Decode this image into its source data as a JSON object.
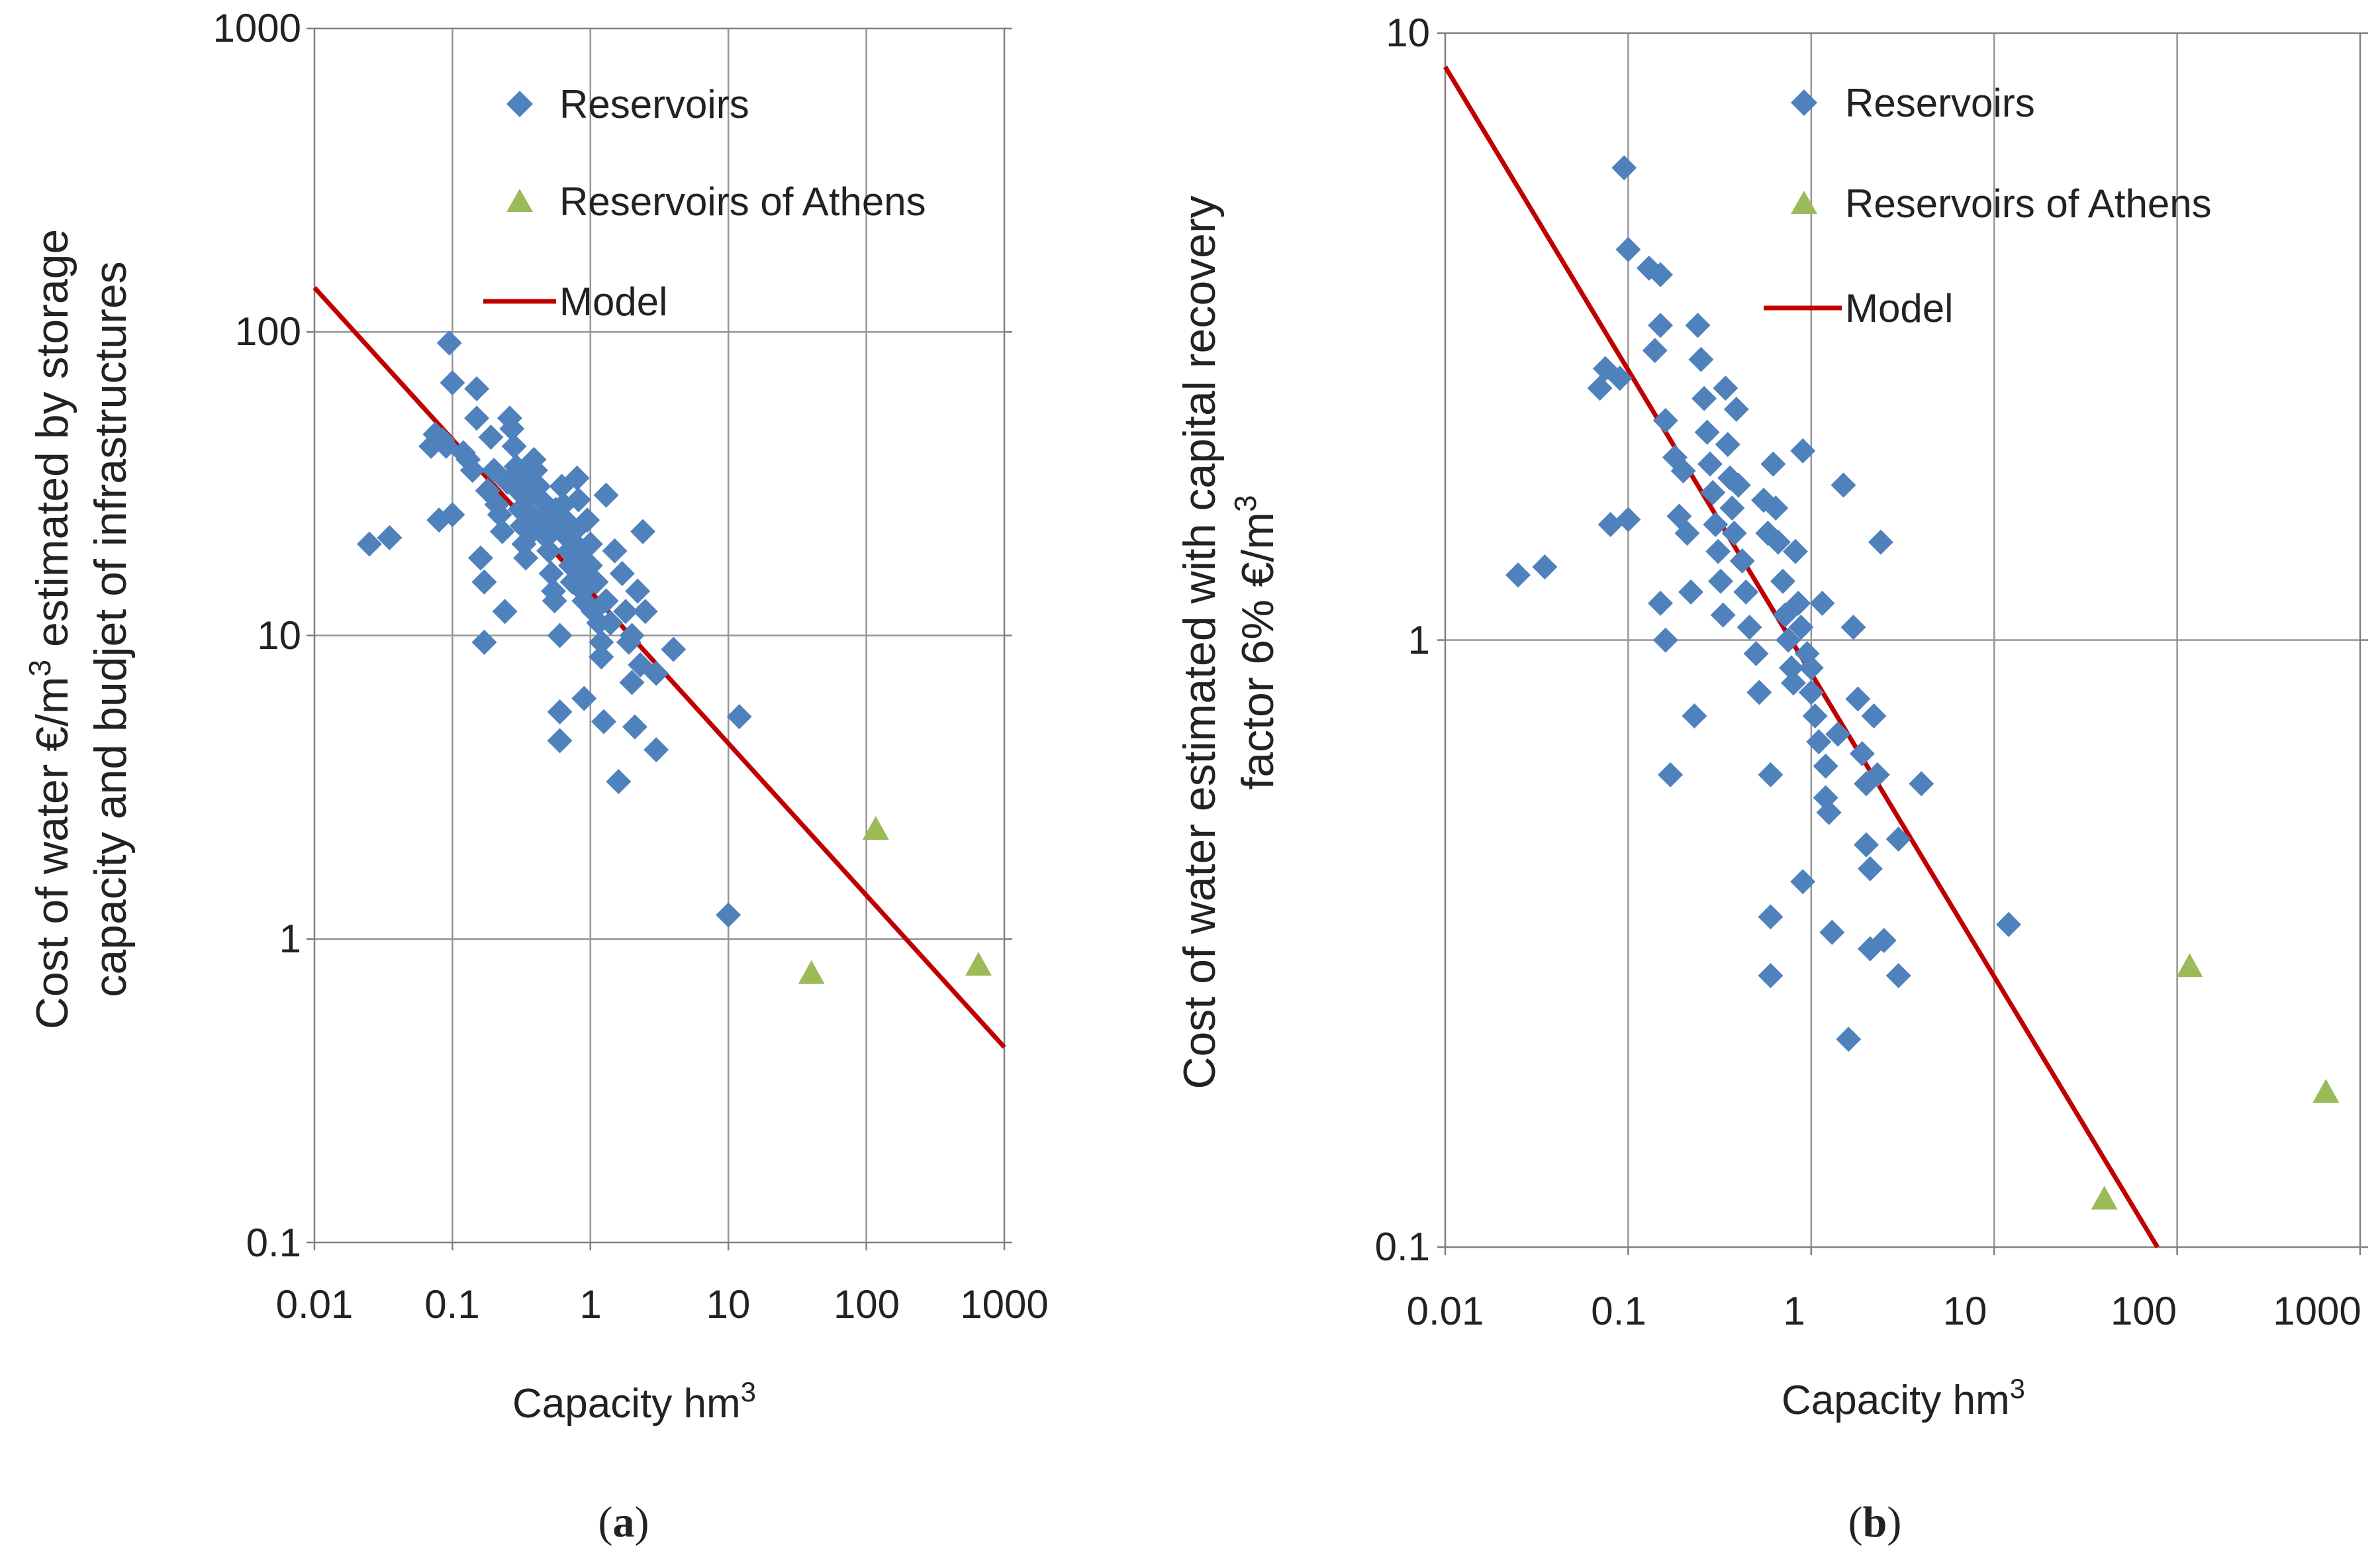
{
  "colors": {
    "reservoirs": "#4f81bd",
    "athens": "#9bbb59",
    "model": "#c00000",
    "grid": "#969696",
    "axis": "#808080"
  },
  "chart_data": [
    {
      "panel": "a",
      "caption": "(a)",
      "type": "scatter",
      "xscale": "log",
      "yscale": "log",
      "xlim": [
        0.01,
        1000
      ],
      "ylim": [
        0.1,
        1000
      ],
      "xticks": [
        "0.01",
        "0.1",
        "1",
        "10",
        "100",
        "1000"
      ],
      "yticks": [
        "0.1",
        "1",
        "10",
        "100",
        "1000"
      ],
      "xlabel_main": "Capacity hm",
      "xlabel_sup": "3",
      "ylabel_line1_a": "Cost of water €/m",
      "ylabel_line1_sup": "3",
      "ylabel_line1_b": " estimated by storage",
      "ylabel_line2": "capacity and budjet of infrastructures",
      "legend": {
        "reservoirs": "Reservoirs",
        "athens": "Reservoirs of Athens",
        "model": "Model"
      },
      "model_line": [
        [
          0.01,
          140
        ],
        [
          1000,
          0.44
        ]
      ],
      "series": [
        {
          "name": "Reservoirs",
          "marker": "diamond",
          "points": [
            [
              0.025,
              20
            ],
            [
              0.035,
              21
            ],
            [
              0.07,
              42
            ],
            [
              0.075,
              46
            ],
            [
              0.08,
              24
            ],
            [
              0.085,
              44
            ],
            [
              0.09,
              42
            ],
            [
              0.095,
              92
            ],
            [
              0.1,
              68
            ],
            [
              0.1,
              25
            ],
            [
              0.12,
              40
            ],
            [
              0.13,
              38
            ],
            [
              0.14,
              35
            ],
            [
              0.15,
              65
            ],
            [
              0.15,
              52
            ],
            [
              0.16,
              18
            ],
            [
              0.17,
              15
            ],
            [
              0.17,
              9.5
            ],
            [
              0.18,
              30
            ],
            [
              0.19,
              45
            ],
            [
              0.2,
              35
            ],
            [
              0.21,
              27
            ],
            [
              0.22,
              25
            ],
            [
              0.23,
              22
            ],
            [
              0.24,
              12
            ],
            [
              0.25,
              32
            ],
            [
              0.26,
              52
            ],
            [
              0.27,
              48
            ],
            [
              0.28,
              42
            ],
            [
              0.29,
              36
            ],
            [
              0.3,
              30
            ],
            [
              0.31,
              26
            ],
            [
              0.32,
              23
            ],
            [
              0.33,
              20
            ],
            [
              0.34,
              18
            ],
            [
              0.35,
              33
            ],
            [
              0.36,
              29
            ],
            [
              0.37,
              25
            ],
            [
              0.38,
              22
            ],
            [
              0.39,
              38
            ],
            [
              0.4,
              35
            ],
            [
              0.42,
              31
            ],
            [
              0.44,
              28
            ],
            [
              0.46,
              24
            ],
            [
              0.48,
              21
            ],
            [
              0.5,
              19
            ],
            [
              0.52,
              16
            ],
            [
              0.54,
              14
            ],
            [
              0.55,
              13
            ],
            [
              0.56,
              26
            ],
            [
              0.58,
              23
            ],
            [
              0.6,
              10
            ],
            [
              0.6,
              5.6
            ],
            [
              0.6,
              4.5
            ],
            [
              0.62,
              31
            ],
            [
              0.64,
              27
            ],
            [
              0.66,
              24
            ],
            [
              0.68,
              21
            ],
            [
              0.7,
              19
            ],
            [
              0.72,
              17
            ],
            [
              0.74,
              15
            ],
            [
              0.76,
              22
            ],
            [
              0.78,
              20
            ],
            [
              0.8,
              33
            ],
            [
              0.82,
              28
            ],
            [
              0.84,
              18
            ],
            [
              0.86,
              16
            ],
            [
              0.88,
              14
            ],
            [
              0.9,
              6.2
            ],
            [
              0.9,
              13
            ],
            [
              0.95,
              24
            ],
            [
              1,
              20
            ],
            [
              1,
              17
            ],
            [
              1.05,
              12
            ],
            [
              1.1,
              15
            ],
            [
              1.15,
              11
            ],
            [
              1.2,
              9.5
            ],
            [
              1.2,
              8.5
            ],
            [
              1.25,
              5.2
            ],
            [
              1.3,
              29
            ],
            [
              1.3,
              13
            ],
            [
              1.4,
              11
            ],
            [
              1.5,
              19
            ],
            [
              1.6,
              3.3
            ],
            [
              1.7,
              16
            ],
            [
              1.8,
              12
            ],
            [
              1.9,
              9.5
            ],
            [
              2,
              10
            ],
            [
              2,
              7
            ],
            [
              2.1,
              5
            ],
            [
              2.2,
              14
            ],
            [
              2.3,
              8
            ],
            [
              2.4,
              22
            ],
            [
              2.5,
              12
            ],
            [
              3,
              7.5
            ],
            [
              3,
              4.2
            ],
            [
              4,
              9
            ],
            [
              10,
              1.2
            ],
            [
              12,
              5.4
            ]
          ]
        },
        {
          "name": "Reservoirs of Athens",
          "marker": "triangle",
          "points": [
            [
              40,
              0.77
            ],
            [
              117,
              2.3
            ],
            [
              650,
              0.82
            ]
          ]
        }
      ]
    },
    {
      "panel": "b",
      "caption": "(b)",
      "type": "scatter",
      "xscale": "log",
      "yscale": "log",
      "xlim": [
        0.01,
        1000
      ],
      "ylim": [
        0.1,
        10
      ],
      "xticks": [
        "0.01",
        "0.1",
        "1",
        "10",
        "100",
        "1000"
      ],
      "yticks": [
        "0.1",
        "1",
        "10"
      ],
      "xlabel_main": "Capacity hm",
      "xlabel_sup": "3",
      "ylabel_line1": "Cost of water estimated with capital recovery",
      "ylabel_line2_a": "factor 6% €/m",
      "ylabel_line2_sup": "3",
      "legend": {
        "reservoirs": "Reservoirs",
        "athens": "Reservoirs of Athens",
        "model": "Model"
      },
      "model_line": [
        [
          0.01,
          8.8
        ],
        [
          78,
          0.1
        ]
      ],
      "series": [
        {
          "name": "Reservoirs",
          "marker": "diamond",
          "points": [
            [
              0.025,
              1.28
            ],
            [
              0.035,
              1.32
            ],
            [
              0.07,
              2.6
            ],
            [
              0.075,
              2.8
            ],
            [
              0.08,
              1.55
            ],
            [
              0.09,
              2.7
            ],
            [
              0.095,
              6
            ],
            [
              0.1,
              4.4
            ],
            [
              0.1,
              1.58
            ],
            [
              0.13,
              4.1
            ],
            [
              0.14,
              3.0
            ],
            [
              0.15,
              4.0
            ],
            [
              0.15,
              3.3
            ],
            [
              0.15,
              1.15
            ],
            [
              0.16,
              2.3
            ],
            [
              0.16,
              1.0
            ],
            [
              0.17,
              0.6
            ],
            [
              0.18,
              2.0
            ],
            [
              0.19,
              1.6
            ],
            [
              0.2,
              1.9
            ],
            [
              0.21,
              1.5
            ],
            [
              0.22,
              1.2
            ],
            [
              0.23,
              0.75
            ],
            [
              0.24,
              3.3
            ],
            [
              0.25,
              2.9
            ],
            [
              0.26,
              2.5
            ],
            [
              0.27,
              2.2
            ],
            [
              0.28,
              1.95
            ],
            [
              0.29,
              1.75
            ],
            [
              0.3,
              1.55
            ],
            [
              0.31,
              1.4
            ],
            [
              0.32,
              1.25
            ],
            [
              0.33,
              1.1
            ],
            [
              0.34,
              2.6
            ],
            [
              0.35,
              2.1
            ],
            [
              0.36,
              1.85
            ],
            [
              0.37,
              1.65
            ],
            [
              0.38,
              1.5
            ],
            [
              0.39,
              2.4
            ],
            [
              0.4,
              1.8
            ],
            [
              0.42,
              1.35
            ],
            [
              0.44,
              1.2
            ],
            [
              0.46,
              1.05
            ],
            [
              0.5,
              0.95
            ],
            [
              0.52,
              0.82
            ],
            [
              0.55,
              1.7
            ],
            [
              0.58,
              1.5
            ],
            [
              0.6,
              0.6
            ],
            [
              0.6,
              0.35
            ],
            [
              0.6,
              0.28
            ],
            [
              0.62,
              1.95
            ],
            [
              0.64,
              1.65
            ],
            [
              0.66,
              1.45
            ],
            [
              0.7,
              1.25
            ],
            [
              0.72,
              1.1
            ],
            [
              0.75,
              1.0
            ],
            [
              0.78,
              0.9
            ],
            [
              0.8,
              0.85
            ],
            [
              0.82,
              1.4
            ],
            [
              0.85,
              1.15
            ],
            [
              0.88,
              1.05
            ],
            [
              0.9,
              2.05
            ],
            [
              0.9,
              0.4
            ],
            [
              0.95,
              0.95
            ],
            [
              1,
              0.9
            ],
            [
              1,
              0.82
            ],
            [
              1.05,
              0.75
            ],
            [
              1.1,
              0.68
            ],
            [
              1.15,
              1.15
            ],
            [
              1.2,
              0.62
            ],
            [
              1.2,
              0.55
            ],
            [
              1.25,
              0.52
            ],
            [
              1.3,
              0.33
            ],
            [
              1.4,
              0.7
            ],
            [
              1.5,
              1.8
            ],
            [
              1.6,
              0.22
            ],
            [
              1.7,
              1.05
            ],
            [
              1.8,
              0.8
            ],
            [
              1.9,
              0.65
            ],
            [
              2,
              0.58
            ],
            [
              2,
              0.46
            ],
            [
              2.1,
              0.42
            ],
            [
              2.1,
              0.31
            ],
            [
              2.2,
              0.75
            ],
            [
              2.3,
              0.6
            ],
            [
              2.4,
              1.45
            ],
            [
              2.5,
              0.32
            ],
            [
              3,
              0.47
            ],
            [
              3,
              0.28
            ],
            [
              4,
              0.58
            ],
            [
              12,
              0.34
            ]
          ]
        },
        {
          "name": "Reservoirs of Athens",
          "marker": "triangle",
          "points": [
            [
              40,
              0.12
            ],
            [
              117,
              0.29
            ],
            [
              650,
              0.18
            ]
          ]
        }
      ]
    }
  ]
}
